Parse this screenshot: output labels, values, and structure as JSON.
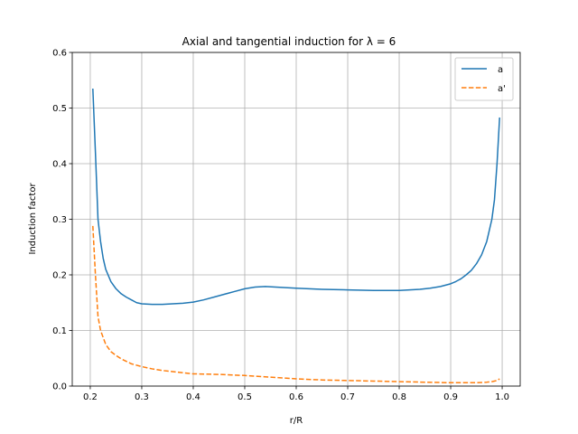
{
  "chart_data": {
    "type": "line",
    "title": "Axial and tangential induction for λ = 6",
    "xlabel": "r/R",
    "ylabel": "Induction factor",
    "xlim": [
      0.165,
      1.035
    ],
    "ylim": [
      0.0,
      0.6
    ],
    "xticks": [
      0.2,
      0.3,
      0.4,
      0.5,
      0.6,
      0.7,
      0.8,
      0.9,
      1.0
    ],
    "xtick_labels": [
      "0.2",
      "0.3",
      "0.4",
      "0.5",
      "0.6",
      "0.7",
      "0.8",
      "0.9",
      "1.0"
    ],
    "yticks": [
      0.0,
      0.1,
      0.2,
      0.3,
      0.4,
      0.5,
      0.6
    ],
    "ytick_labels": [
      "0.0",
      "0.1",
      "0.2",
      "0.3",
      "0.4",
      "0.5",
      "0.6"
    ],
    "grid": true,
    "legend_position": "top-right",
    "series": [
      {
        "name": "a",
        "color": "#1f77b4",
        "dash": "solid",
        "x": [
          0.205,
          0.21,
          0.215,
          0.22,
          0.225,
          0.23,
          0.24,
          0.25,
          0.26,
          0.27,
          0.28,
          0.29,
          0.3,
          0.32,
          0.34,
          0.36,
          0.38,
          0.4,
          0.42,
          0.44,
          0.46,
          0.48,
          0.5,
          0.52,
          0.54,
          0.56,
          0.58,
          0.6,
          0.65,
          0.7,
          0.75,
          0.8,
          0.84,
          0.86,
          0.88,
          0.9,
          0.91,
          0.92,
          0.93,
          0.94,
          0.95,
          0.96,
          0.97,
          0.975,
          0.98,
          0.985,
          0.99,
          0.995
        ],
        "y": [
          0.535,
          0.42,
          0.3,
          0.26,
          0.23,
          0.21,
          0.188,
          0.175,
          0.166,
          0.16,
          0.155,
          0.15,
          0.148,
          0.147,
          0.147,
          0.148,
          0.149,
          0.151,
          0.155,
          0.16,
          0.165,
          0.17,
          0.175,
          0.178,
          0.179,
          0.178,
          0.177,
          0.176,
          0.174,
          0.173,
          0.172,
          0.172,
          0.174,
          0.176,
          0.179,
          0.184,
          0.188,
          0.193,
          0.2,
          0.208,
          0.22,
          0.236,
          0.26,
          0.28,
          0.3,
          0.335,
          0.4,
          0.483
        ]
      },
      {
        "name": "a'",
        "color": "#ff7f0e",
        "dash": "dashed",
        "x": [
          0.205,
          0.21,
          0.215,
          0.22,
          0.23,
          0.24,
          0.25,
          0.26,
          0.28,
          0.3,
          0.32,
          0.34,
          0.36,
          0.38,
          0.4,
          0.45,
          0.5,
          0.55,
          0.6,
          0.65,
          0.7,
          0.75,
          0.8,
          0.85,
          0.9,
          0.95,
          0.97,
          0.98,
          0.99,
          0.995
        ],
        "y": [
          0.288,
          0.2,
          0.125,
          0.1,
          0.075,
          0.062,
          0.055,
          0.049,
          0.04,
          0.035,
          0.031,
          0.028,
          0.026,
          0.024,
          0.022,
          0.021,
          0.019,
          0.016,
          0.013,
          0.011,
          0.01,
          0.009,
          0.008,
          0.007,
          0.006,
          0.006,
          0.007,
          0.008,
          0.01,
          0.013
        ]
      }
    ]
  }
}
